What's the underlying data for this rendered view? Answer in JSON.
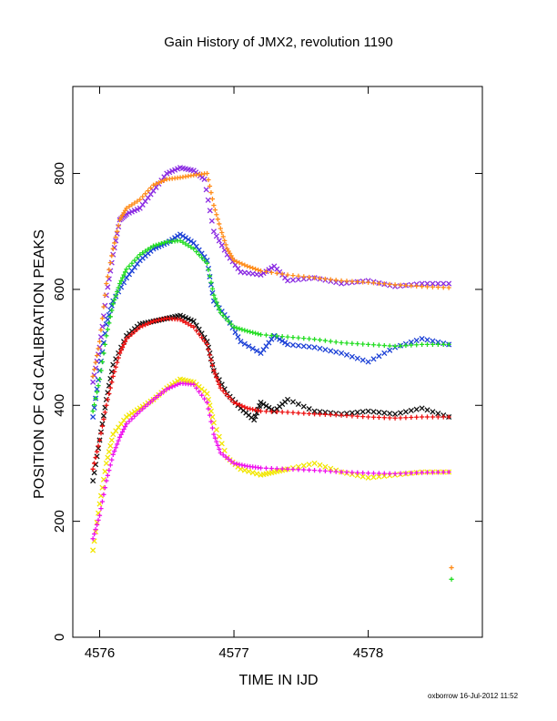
{
  "chart_data": {
    "type": "scatter",
    "title": "Gain History of JMX2, revolution 1190",
    "xlabel": "TIME IN IJD",
    "ylabel": "POSITION OF Cd CALIBRATION PEAKS",
    "xlim": [
      4575.8,
      4578.85
    ],
    "ylim": [
      0,
      950
    ],
    "x_ticks": [
      "4576",
      "4577",
      "4578"
    ],
    "y_ticks": [
      "0",
      "200",
      "400",
      "600",
      "800"
    ],
    "grid": false,
    "series": [
      {
        "group": 1,
        "marker": "x",
        "color": "#8a2be2",
        "x": [
          4575.95,
          4576.0,
          4576.05,
          4576.1,
          4576.15,
          4576.2,
          4576.3,
          4576.4,
          4576.5,
          4576.6,
          4576.7,
          4576.78,
          4576.85,
          4576.95,
          4577.05,
          4577.2,
          4577.3,
          4577.4,
          4577.6,
          4577.8,
          4578.0,
          4578.2,
          4578.4,
          4578.6
        ],
        "y": [
          440,
          500,
          590,
          660,
          720,
          730,
          740,
          770,
          800,
          810,
          805,
          790,
          700,
          660,
          630,
          625,
          640,
          615,
          620,
          610,
          615,
          605,
          610,
          610
        ]
      },
      {
        "group": 1,
        "marker": "+",
        "color": "#ff8c1a",
        "x": [
          4575.95,
          4576.0,
          4576.05,
          4576.1,
          4576.15,
          4576.2,
          4576.3,
          4576.4,
          4576.5,
          4576.6,
          4576.7,
          4576.8,
          4576.85,
          4576.9,
          4576.95,
          4577.0,
          4577.1,
          4577.2,
          4577.4,
          4577.6,
          4577.8,
          4578.0,
          4578.2,
          4578.4,
          4578.6
        ],
        "y": [
          450,
          510,
          610,
          670,
          720,
          740,
          755,
          780,
          790,
          793,
          797,
          800,
          745,
          705,
          670,
          650,
          640,
          632,
          625,
          620,
          615,
          612,
          608,
          605,
          603
        ]
      },
      {
        "group": 2,
        "marker": "x",
        "color": "#1a3fd6",
        "x": [
          4575.95,
          4576.0,
          4576.05,
          4576.1,
          4576.2,
          4576.3,
          4576.4,
          4576.5,
          4576.6,
          4576.7,
          4576.8,
          4576.85,
          4576.95,
          4577.05,
          4577.2,
          4577.3,
          4577.4,
          4577.6,
          4577.8,
          4578.0,
          4578.2,
          4578.4,
          4578.6
        ],
        "y": [
          380,
          460,
          540,
          580,
          620,
          650,
          670,
          680,
          695,
          680,
          650,
          580,
          550,
          510,
          490,
          520,
          505,
          500,
          490,
          475,
          500,
          515,
          505
        ]
      },
      {
        "group": 2,
        "marker": "+",
        "color": "#22dd22",
        "x": [
          4575.95,
          4576.0,
          4576.05,
          4576.1,
          4576.15,
          4576.2,
          4576.3,
          4576.4,
          4576.5,
          4576.6,
          4576.7,
          4576.8,
          4576.85,
          4576.9,
          4577.0,
          4577.1,
          4577.2,
          4577.4,
          4577.6,
          4577.8,
          4578.0,
          4578.2,
          4578.4,
          4578.6
        ],
        "y": [
          390,
          445,
          520,
          575,
          610,
          635,
          660,
          675,
          682,
          684,
          670,
          645,
          590,
          560,
          535,
          528,
          522,
          518,
          514,
          508,
          505,
          502,
          505,
          505
        ]
      },
      {
        "group": 3,
        "marker": "x",
        "color": "#111111",
        "x": [
          4575.95,
          4576.0,
          4576.05,
          4576.1,
          4576.2,
          4576.3,
          4576.4,
          4576.5,
          4576.6,
          4576.7,
          4576.8,
          4576.85,
          4576.95,
          4577.05,
          4577.15,
          4577.2,
          4577.3,
          4577.4,
          4577.6,
          4577.8,
          4578.0,
          4578.2,
          4578.4,
          4578.6
        ],
        "y": [
          270,
          340,
          410,
          470,
          520,
          540,
          545,
          550,
          555,
          545,
          510,
          460,
          420,
          395,
          375,
          405,
          390,
          410,
          390,
          385,
          390,
          385,
          395,
          380
        ]
      },
      {
        "group": 3,
        "marker": "+",
        "color": "#ee1111",
        "x": [
          4575.95,
          4576.0,
          4576.05,
          4576.1,
          4576.15,
          4576.2,
          4576.3,
          4576.4,
          4576.5,
          4576.6,
          4576.7,
          4576.8,
          4576.85,
          4576.9,
          4577.0,
          4577.1,
          4577.2,
          4577.4,
          4577.6,
          4577.8,
          4578.0,
          4578.2,
          4578.4,
          4578.6
        ],
        "y": [
          290,
          340,
          400,
          450,
          490,
          515,
          535,
          545,
          550,
          548,
          535,
          505,
          460,
          430,
          405,
          395,
          390,
          388,
          385,
          383,
          380,
          378,
          380,
          380
        ]
      },
      {
        "group": 4,
        "marker": "x",
        "color": "#f2e600",
        "x": [
          4575.95,
          4576.0,
          4576.05,
          4576.1,
          4576.2,
          4576.3,
          4576.4,
          4576.5,
          4576.6,
          4576.7,
          4576.8,
          4576.85,
          4576.95,
          4577.05,
          4577.2,
          4577.3,
          4577.4,
          4577.6,
          4577.8,
          4578.0,
          4578.2,
          4578.4,
          4578.6
        ],
        "y": [
          150,
          230,
          300,
          350,
          380,
          395,
          410,
          430,
          445,
          440,
          420,
          370,
          310,
          290,
          280,
          285,
          290,
          300,
          285,
          275,
          280,
          285,
          285
        ]
      },
      {
        "group": 4,
        "marker": "+",
        "color": "#ee11ee",
        "x": [
          4575.95,
          4576.0,
          4576.05,
          4576.1,
          4576.15,
          4576.2,
          4576.3,
          4576.4,
          4576.5,
          4576.6,
          4576.7,
          4576.8,
          4576.85,
          4576.9,
          4577.0,
          4577.1,
          4577.2,
          4577.4,
          4577.6,
          4577.8,
          4578.0,
          4578.2,
          4578.4,
          4578.6
        ],
        "y": [
          170,
          210,
          270,
          315,
          345,
          368,
          390,
          410,
          428,
          438,
          436,
          405,
          350,
          318,
          300,
          295,
          292,
          290,
          288,
          285,
          283,
          282,
          284,
          285
        ]
      },
      {
        "group": 0,
        "marker": "+",
        "color": "#ff8c1a",
        "x": [
          4578.62
        ],
        "y": [
          120
        ]
      },
      {
        "group": 0,
        "marker": "+",
        "color": "#22dd22",
        "x": [
          4578.62
        ],
        "y": [
          100
        ]
      }
    ]
  },
  "footer": {
    "credit": "oxborrow 16-Jul-2012 11:52"
  }
}
